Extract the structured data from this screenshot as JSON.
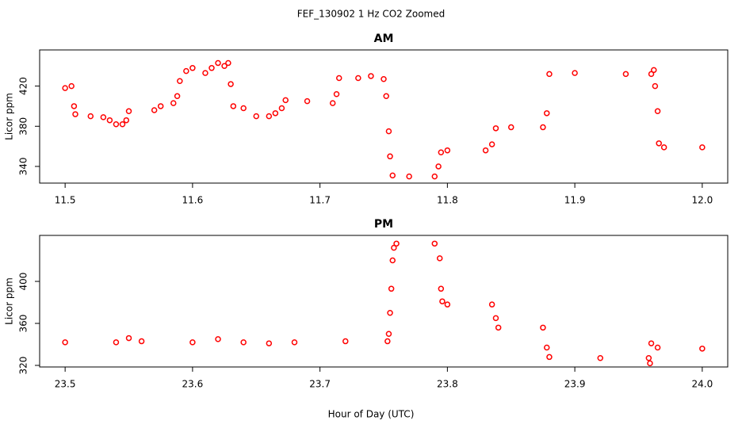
{
  "title": "FEF_130902  1 Hz CO2 Zoomed",
  "x_label": "Hour of Day (UTC)",
  "chart_data": [
    {
      "type": "scatter",
      "title": "AM",
      "y_label": "Licor ppm",
      "color": "#ff0000",
      "x": [
        11.5,
        11.505,
        11.507,
        11.508,
        11.52,
        11.53,
        11.535,
        11.54,
        11.545,
        11.548,
        11.55,
        11.57,
        11.575,
        11.585,
        11.588,
        11.59,
        11.595,
        11.6,
        11.61,
        11.615,
        11.62,
        11.625,
        11.628,
        11.63,
        11.632,
        11.64,
        11.65,
        11.66,
        11.665,
        11.67,
        11.673,
        11.69,
        11.71,
        11.713,
        11.715,
        11.73,
        11.74,
        11.75,
        11.752,
        11.754,
        11.755,
        11.757,
        11.77,
        11.79,
        11.793,
        11.795,
        11.8,
        11.83,
        11.835,
        11.838,
        11.85,
        11.875,
        11.878,
        11.88,
        11.9,
        11.94,
        11.96,
        11.962,
        11.963,
        11.965,
        11.966,
        11.97,
        12.0
      ],
      "values": [
        418,
        420,
        400,
        392,
        390,
        389,
        386,
        382,
        382,
        386,
        395,
        396,
        400,
        403,
        410,
        425,
        435,
        438,
        433,
        438,
        443,
        440,
        443,
        422,
        400,
        398,
        390,
        390,
        393,
        398,
        406,
        405,
        403,
        412,
        428,
        428,
        430,
        427,
        410,
        375,
        350,
        331,
        330,
        330,
        340,
        354,
        356,
        356,
        362,
        378,
        379,
        379,
        393,
        432,
        433,
        432,
        432,
        436,
        420,
        395,
        363,
        359,
        359
      ],
      "xlim": [
        11.48,
        12.02
      ],
      "xticks": [
        11.5,
        11.6,
        11.7,
        11.8,
        11.9,
        {
          "value": 12.0,
          "label": "12.0"
        }
      ],
      "ylim": [
        323.4,
        456
      ],
      "yticks": [
        340,
        380,
        420
      ]
    },
    {
      "type": "scatter",
      "title": "PM",
      "y_label": "Licor ppm",
      "color": "#ff0000",
      "x": [
        23.5,
        23.54,
        23.55,
        23.56,
        23.6,
        23.62,
        23.64,
        23.66,
        23.68,
        23.72,
        23.753,
        23.754,
        23.755,
        23.756,
        23.757,
        23.758,
        23.76,
        23.79,
        23.794,
        23.795,
        23.796,
        23.8,
        23.835,
        23.838,
        23.84,
        23.875,
        23.878,
        23.88,
        23.92,
        23.958,
        23.959,
        23.96,
        23.965,
        24.0
      ],
      "values": [
        342,
        342,
        346,
        343,
        342,
        345,
        342,
        341,
        342,
        343,
        343,
        350,
        370,
        393,
        420,
        432,
        436,
        436,
        422,
        393,
        381,
        378,
        378,
        365,
        356,
        356,
        337,
        328,
        327,
        327,
        322,
        341,
        337,
        336
      ],
      "xlim": [
        23.48,
        24.02
      ],
      "xticks": [
        23.5,
        23.6,
        23.7,
        23.8,
        23.9,
        {
          "value": 24.0,
          "label": "24.0"
        }
      ],
      "ylim": [
        318.5,
        443.8
      ],
      "yticks": [
        320,
        360,
        400
      ]
    }
  ]
}
